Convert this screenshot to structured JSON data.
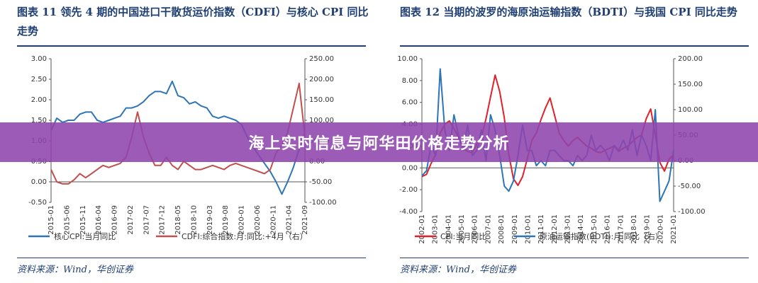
{
  "banner": {
    "title": "海上实时信息与阿华田价格走势分析"
  },
  "charts": {
    "left": {
      "title": "图表 11   领先 4 期的中国进口干散货运价指数（CDFI）与核心 CPI 同比走势",
      "source": "资料来源：Wind，华创证券"
    },
    "right": {
      "title": "图表 12   当期的波罗的海原油运输指数（BDTI）与我国 CPI 同比走势",
      "source": "资料来源：Wind，华创证券"
    }
  },
  "chart_data": [
    {
      "type": "line",
      "title": "图表 11   领先 4 期的中国进口干散货运价指数（CDFI）与核心 CPI 同比走势",
      "y_left": {
        "min": -0.5,
        "max": 3.0,
        "ticks": [
          "3.00",
          "2.50",
          "2.00",
          "1.50",
          "1.00",
          "0.50",
          "0.00",
          "-0.50"
        ]
      },
      "y_right": {
        "min": -100,
        "max": 250,
        "ticks": [
          "250.00",
          "200.00",
          "150.00",
          "100.00",
          "50.00",
          "0.00",
          "-50.00",
          "-100.00"
        ]
      },
      "x_ticks": [
        "2015-01",
        "2015-06",
        "2015-11",
        "2016-04",
        "2016-09",
        "2017-02",
        "2017-07",
        "2017-12",
        "2018-05",
        "2018-10",
        "2019-03",
        "2019-08",
        "2020-01",
        "2020-06",
        "2020-11",
        "2021-04",
        "2021-09"
      ],
      "series": [
        {
          "name": "核心CPI:当月同比",
          "axis": "left",
          "color": "#2e75b6",
          "values": [
            1.25,
            1.55,
            1.45,
            1.5,
            1.5,
            1.65,
            1.7,
            1.7,
            1.5,
            1.45,
            1.5,
            1.55,
            1.6,
            1.8,
            1.8,
            1.85,
            1.95,
            2.1,
            2.2,
            2.2,
            2.15,
            2.45,
            2.1,
            2.05,
            1.9,
            1.95,
            1.85,
            1.8,
            1.6,
            1.55,
            1.6,
            1.55,
            1.5,
            1.4,
            1.1,
            0.85,
            0.65,
            0.45,
            0.25,
            0.0,
            -0.3,
            0.0,
            0.35,
            0.8,
            1.2
          ]
        },
        {
          "name": "CDFI:综合指数:月:同比:+4月（右）",
          "axis": "right",
          "color": "#c0504d",
          "values": [
            -20,
            -50,
            -55,
            -55,
            -45,
            -30,
            -40,
            -30,
            -20,
            -10,
            -15,
            -10,
            -5,
            10,
            60,
            120,
            60,
            20,
            -10,
            -10,
            10,
            -10,
            -20,
            0,
            -10,
            -20,
            -20,
            -15,
            -10,
            -15,
            -20,
            -10,
            -5,
            -10,
            -15,
            -20,
            -25,
            -30,
            -20,
            20,
            40,
            70,
            130,
            190,
            60
          ]
        }
      ],
      "legend": [
        "核心CPI:当月同比",
        "CDFI:综合指数:月:同比:+4月（右）"
      ]
    },
    {
      "type": "line",
      "title": "图表 12   当期的波罗的海原油运输指数（BDTI）与我国 CPI 同比走势",
      "y_left": {
        "min": -4,
        "max": 10,
        "ticks": [
          "10.00",
          "8.00",
          "6.00",
          "4.00",
          "2.00",
          "0.00",
          "-2.00",
          "-4.00"
        ]
      },
      "y_right": {
        "min": -100,
        "max": 200,
        "ticks": [
          "200.00",
          "150.00",
          "100.00",
          "50.00",
          "0.00",
          "-50.00",
          "-100.00"
        ]
      },
      "x_ticks": [
        "2002-01",
        "2003-01",
        "2004-01",
        "2005-01",
        "2006-01",
        "2007-01",
        "2008-01",
        "2009-01",
        "2010-01",
        "2011-01",
        "2012-01",
        "2013-01",
        "2014-01",
        "2015-01",
        "2016-01",
        "2017-01",
        "2018-01",
        "2019-01",
        "2020-01",
        "2021-01"
      ],
      "series": [
        {
          "name": "CPI:当月同比",
          "axis": "left",
          "color": "#e0202a",
          "values": [
            -0.8,
            -0.6,
            0.4,
            1.2,
            3.2,
            4.0,
            4.3,
            3.6,
            2.8,
            1.8,
            1.5,
            1.4,
            2.2,
            2.8,
            4.5,
            6.5,
            8.5,
            7.0,
            4.6,
            1.2,
            -1.0,
            -1.6,
            -0.8,
            0.8,
            2.5,
            3.2,
            4.4,
            5.5,
            6.4,
            4.8,
            3.2,
            2.5,
            2.0,
            2.5,
            2.8,
            2.4,
            2.0,
            1.8,
            1.5,
            1.4,
            1.6,
            1.8,
            2.0,
            1.5,
            1.8,
            2.0,
            2.4,
            2.8,
            3.0,
            4.5,
            5.4,
            3.0,
            0.5,
            -0.3,
            0.8,
            1.2
          ]
        },
        {
          "name": "原油运输指数(BDTI):月:同比（右）",
          "axis": "right",
          "color": "#2e75b6",
          "values": [
            -30,
            -20,
            30,
            10,
            180,
            60,
            20,
            90,
            50,
            20,
            70,
            10,
            20,
            60,
            0,
            90,
            60,
            10,
            -50,
            -60,
            -40,
            10,
            70,
            20,
            20,
            -10,
            0,
            -10,
            20,
            20,
            10,
            0,
            0,
            -10,
            10,
            0,
            10,
            50,
            20,
            30,
            20,
            0,
            30,
            20,
            40,
            20,
            60,
            10,
            50,
            30,
            0,
            100,
            -80,
            -60,
            -40,
            20
          ]
        }
      ],
      "legend": [
        "CPI:当月同比",
        "原油运输指数(BDTI):月:同比（右）"
      ]
    }
  ]
}
